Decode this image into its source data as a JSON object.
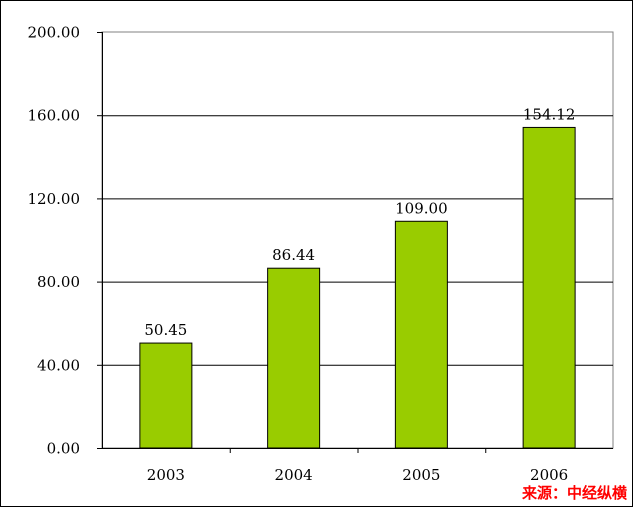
{
  "chart_data": {
    "type": "bar",
    "categories": [
      "2003",
      "2004",
      "2005",
      "2006"
    ],
    "values": [
      50.45,
      86.44,
      109.0,
      154.12
    ],
    "data_labels": [
      "50.45",
      "86.44",
      "109.00",
      "154.12"
    ],
    "title": "",
    "xlabel": "",
    "ylabel": "",
    "ylim": [
      0,
      200
    ],
    "yticks": [
      0,
      40,
      80,
      120,
      160,
      200
    ],
    "ytick_labels": [
      "0.00",
      "40.00",
      "80.00",
      "120.00",
      "160.00",
      "200.00"
    ],
    "grid": true,
    "legend": "none",
    "bar_color": "#99cc00"
  },
  "source": "来源：中经纵横"
}
